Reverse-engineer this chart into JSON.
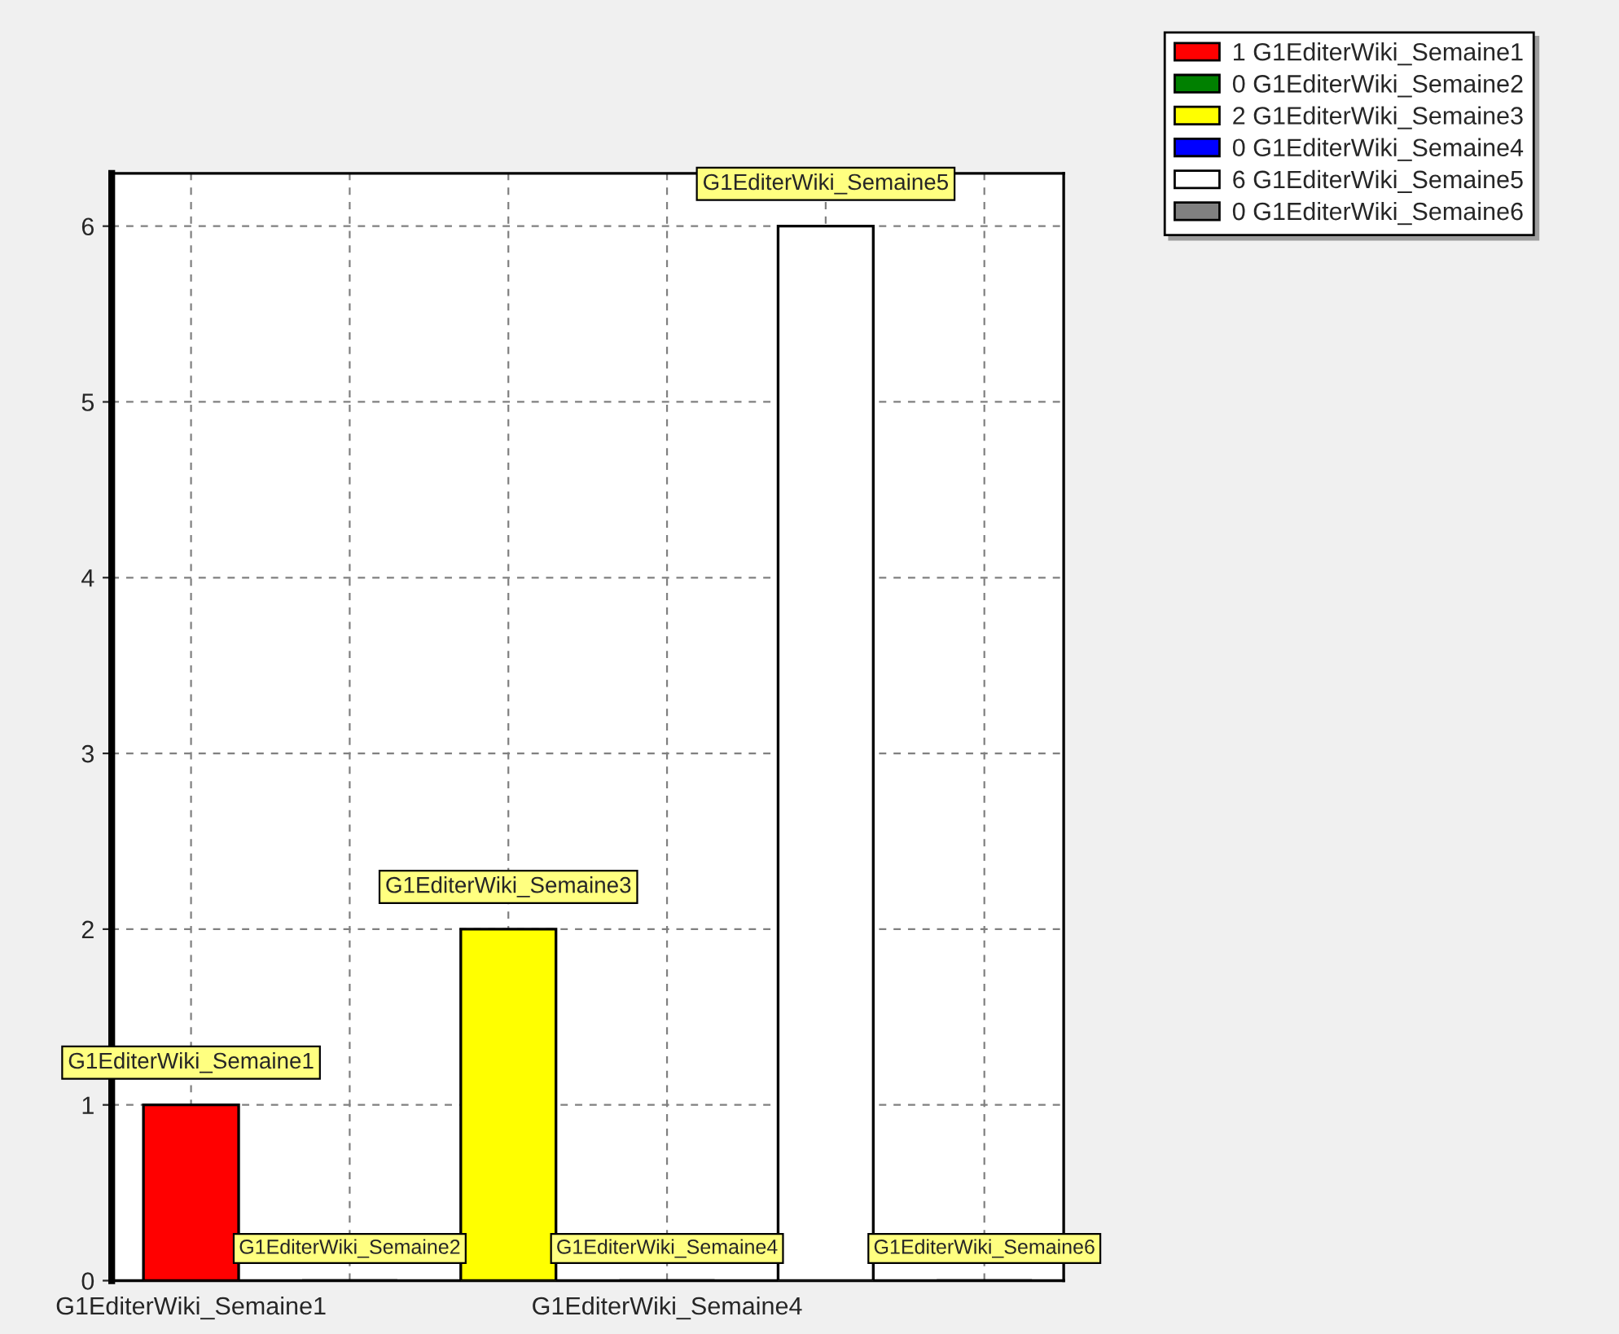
{
  "chart_data": {
    "type": "bar",
    "categories": [
      "G1EditerWiki_Semaine1",
      null,
      null,
      "G1EditerWiki_Semaine4",
      null,
      null
    ],
    "series": [
      {
        "name": "1 G1EditerWiki_Semaine1",
        "color": "#ff0000",
        "values": [
          1,
          null,
          null,
          null,
          null,
          null
        ],
        "value_labels": [
          "G1EditerWiki_Semaine1",
          null,
          null,
          null,
          null,
          null
        ]
      },
      {
        "name": "0 G1EditerWiki_Semaine2",
        "color": "#008000",
        "values": [
          null,
          0,
          null,
          null,
          null,
          null
        ],
        "value_labels": [
          null,
          "G1EditerWiki_Semaine2",
          null,
          null,
          null,
          null
        ]
      },
      {
        "name": "2 G1EditerWiki_Semaine3",
        "color": "#ffff00",
        "values": [
          null,
          null,
          2,
          null,
          null,
          null
        ],
        "value_labels": [
          null,
          null,
          "G1EditerWiki_Semaine3",
          null,
          null,
          null
        ]
      },
      {
        "name": "0 G1EditerWiki_Semaine4",
        "color": "#0000ff",
        "values": [
          null,
          null,
          null,
          0,
          null,
          null
        ],
        "value_labels": [
          null,
          null,
          null,
          "G1EditerWiki_Semaine4",
          null,
          null
        ]
      },
      {
        "name": "6 G1EditerWiki_Semaine5",
        "color": "#ffffff",
        "values": [
          null,
          null,
          null,
          null,
          6,
          null
        ],
        "value_labels": [
          null,
          null,
          null,
          null,
          "G1EditerWiki_Semaine5",
          null
        ]
      },
      {
        "name": "0 G1EditerWiki_Semaine6",
        "color": "#808080",
        "values": [
          null,
          null,
          null,
          null,
          null,
          0
        ],
        "value_labels": [
          null,
          null,
          null,
          null,
          null,
          "G1EditerWiki_Semaine6"
        ]
      }
    ],
    "ylim": [
      0,
      6.3
    ],
    "yticks": [
      0,
      1,
      2,
      3,
      4,
      5,
      6
    ],
    "grid": true,
    "legend": "top right"
  }
}
